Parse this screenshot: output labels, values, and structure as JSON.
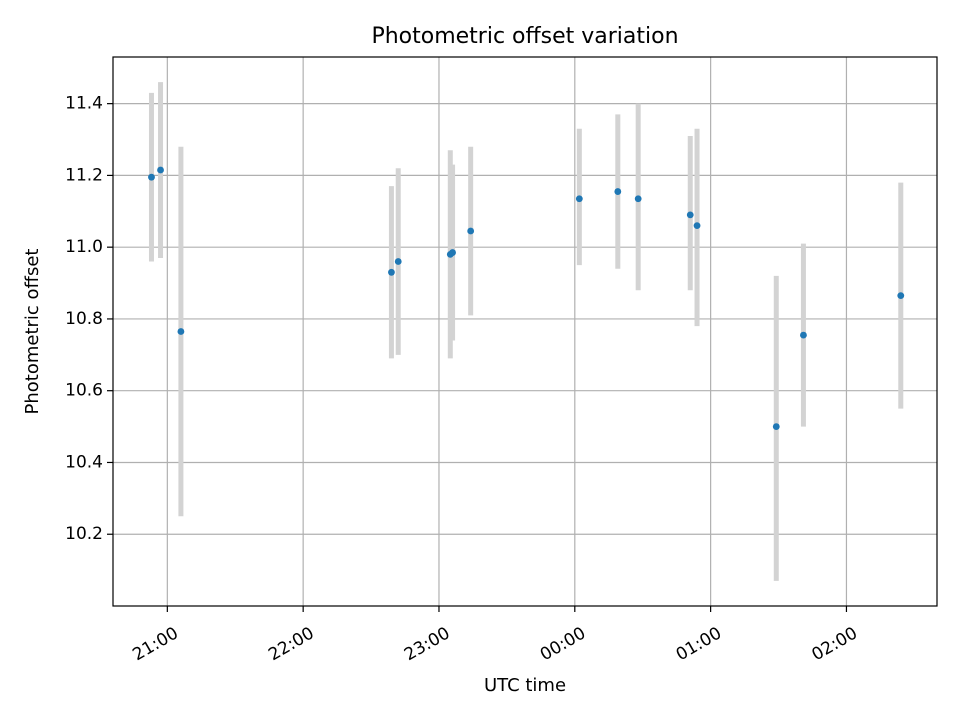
{
  "chart_data": {
    "type": "scatter",
    "title": "Photometric offset variation",
    "xlabel": "UTC time",
    "ylabel": "Photometric offset",
    "x_unit": "UTC clock time (HH:MM), spanning midnight",
    "xlim": [
      "20:36",
      "02:40"
    ],
    "ylim": [
      10.0,
      11.53
    ],
    "xticks": [
      "21:00",
      "22:00",
      "23:00",
      "00:00",
      "01:00",
      "02:00"
    ],
    "yticks": [
      10.2,
      10.4,
      10.6,
      10.8,
      11.0,
      11.2,
      11.4
    ],
    "grid": true,
    "point_color": "#1f77b4",
    "errorbar_color": "#d3d3d3",
    "points": [
      {
        "x": "20:53",
        "y": 11.195,
        "ylow": 10.96,
        "yhigh": 11.43
      },
      {
        "x": "20:57",
        "y": 11.215,
        "ylow": 10.97,
        "yhigh": 11.46
      },
      {
        "x": "21:06",
        "y": 10.765,
        "ylow": 10.25,
        "yhigh": 11.28
      },
      {
        "x": "22:39",
        "y": 10.93,
        "ylow": 10.69,
        "yhigh": 11.17
      },
      {
        "x": "22:42",
        "y": 10.96,
        "ylow": 10.7,
        "yhigh": 11.22
      },
      {
        "x": "23:05",
        "y": 10.98,
        "ylow": 10.69,
        "yhigh": 11.27
      },
      {
        "x": "23:06",
        "y": 10.985,
        "ylow": 10.74,
        "yhigh": 11.23
      },
      {
        "x": "23:14",
        "y": 11.045,
        "ylow": 10.81,
        "yhigh": 11.28
      },
      {
        "x": "00:02",
        "y": 11.135,
        "ylow": 10.95,
        "yhigh": 11.33
      },
      {
        "x": "00:19",
        "y": 11.155,
        "ylow": 10.94,
        "yhigh": 11.37
      },
      {
        "x": "00:28",
        "y": 11.135,
        "ylow": 10.88,
        "yhigh": 11.4
      },
      {
        "x": "00:51",
        "y": 11.09,
        "ylow": 10.88,
        "yhigh": 11.31
      },
      {
        "x": "00:54",
        "y": 11.06,
        "ylow": 10.78,
        "yhigh": 11.33
      },
      {
        "x": "01:29",
        "y": 10.5,
        "ylow": 10.07,
        "yhigh": 10.92
      },
      {
        "x": "01:41",
        "y": 10.755,
        "ylow": 10.5,
        "yhigh": 11.01
      },
      {
        "x": "02:24",
        "y": 10.865,
        "ylow": 10.55,
        "yhigh": 11.18
      }
    ]
  }
}
